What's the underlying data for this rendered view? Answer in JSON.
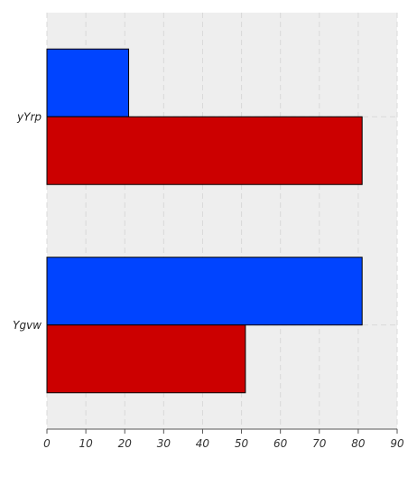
{
  "chart_data": {
    "type": "bar",
    "orientation": "horizontal",
    "categories": [
      "yYrp",
      "Ygvw"
    ],
    "series": [
      {
        "color": "#0044ff",
        "values": [
          21,
          81
        ]
      },
      {
        "color": "#cc0000",
        "values": [
          81,
          51
        ]
      }
    ],
    "xlim": [
      0,
      90
    ],
    "xticks": [
      0,
      10,
      20,
      30,
      40,
      50,
      60,
      70,
      80,
      90
    ],
    "grid": true,
    "legend": "none",
    "title": "",
    "xlabel": "",
    "ylabel": "",
    "background_color": "#eeeeee"
  }
}
